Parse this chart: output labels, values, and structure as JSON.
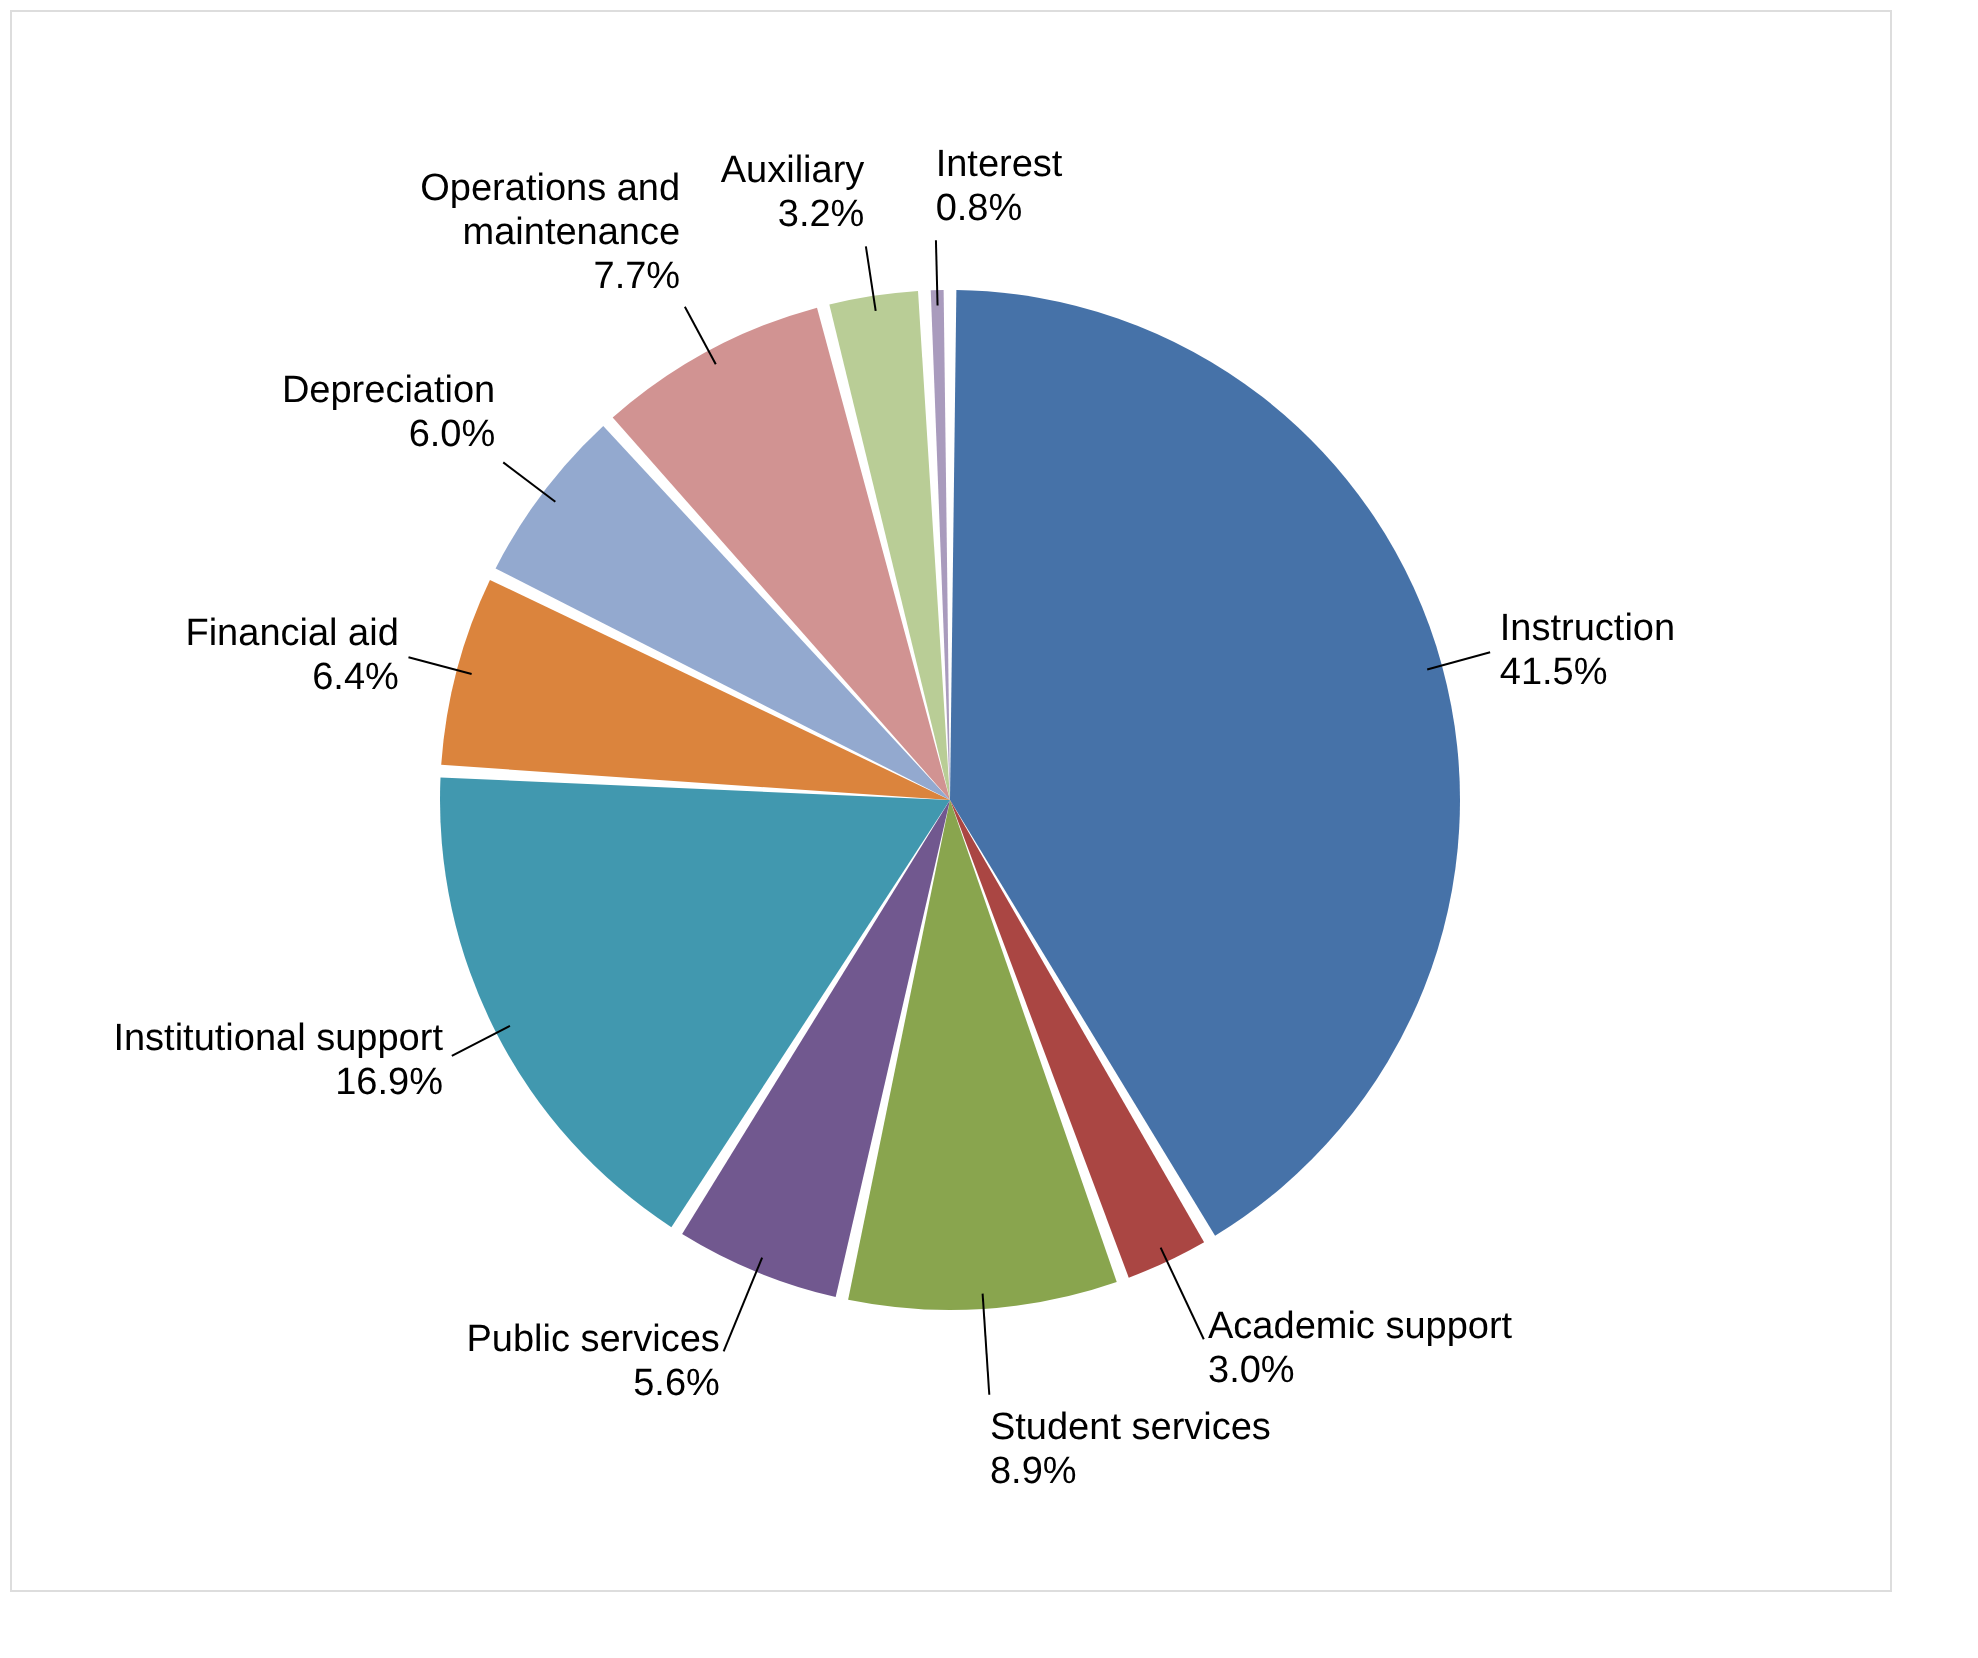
{
  "chart_data": {
    "type": "pie",
    "categories": [
      "Instruction",
      "Academic support",
      "Student services",
      "Public services",
      "Institutional support",
      "Financial aid",
      "Depreciation",
      "Operations and maintenance",
      "Auxiliary",
      "Interest"
    ],
    "values": [
      41.5,
      3.0,
      8.9,
      5.6,
      16.9,
      6.4,
      6.0,
      7.7,
      3.2,
      0.8
    ],
    "value_labels": [
      "41.5%",
      "3.0%",
      "8.9%",
      "5.6%",
      "16.9%",
      "6.4%",
      "6.0%",
      "7.7%",
      "3.2%",
      "0.8%"
    ],
    "colors": [
      "#4672a8",
      "#aa4643",
      "#89a54e",
      "#71588f",
      "#4198af",
      "#db843d",
      "#93a9cf",
      "#d19392",
      "#b9cd96",
      "#a99bbd"
    ],
    "legend": false
  }
}
